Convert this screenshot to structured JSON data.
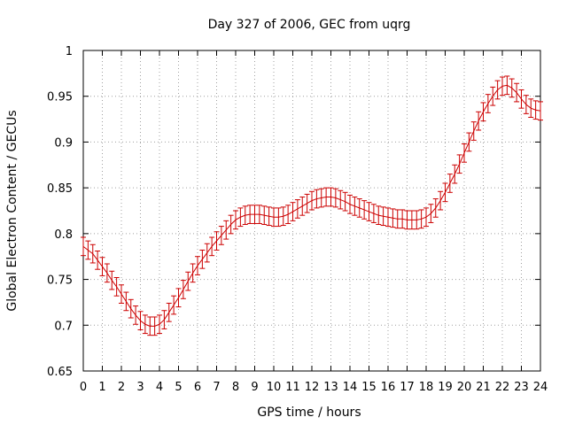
{
  "chart_data": {
    "type": "line",
    "title": "Day 327 of 2006, GEC from uqrg",
    "xlabel": "GPS time / hours",
    "ylabel": "Global Electron Content / GECUs",
    "xlim": [
      0,
      24
    ],
    "ylim": [
      0.65,
      1.0
    ],
    "xticks": [
      "0",
      "1",
      "2",
      "3",
      "4",
      "5",
      "6",
      "7",
      "8",
      "9",
      "10",
      "11",
      "12",
      "13",
      "14",
      "15",
      "16",
      "17",
      "18",
      "19",
      "20",
      "21",
      "22",
      "23",
      "24"
    ],
    "yticks": [
      "0.65",
      "0.7",
      "0.75",
      "0.8",
      "0.85",
      "0.9",
      "0.95",
      "1"
    ],
    "ytick_values": [
      0.65,
      0.7,
      0.75,
      0.8,
      0.85,
      0.9,
      0.95,
      1.0
    ],
    "grid": true,
    "color": "#cc0000",
    "error": 0.01,
    "series": [
      {
        "name": "GEC",
        "x": [
          0,
          0.25,
          0.5,
          0.75,
          1,
          1.25,
          1.5,
          1.75,
          2,
          2.25,
          2.5,
          2.75,
          3,
          3.25,
          3.5,
          3.75,
          4,
          4.25,
          4.5,
          4.75,
          5,
          5.25,
          5.5,
          5.75,
          6,
          6.25,
          6.5,
          6.75,
          7,
          7.25,
          7.5,
          7.75,
          8,
          8.25,
          8.5,
          8.75,
          9,
          9.25,
          9.5,
          9.75,
          10,
          10.25,
          10.5,
          10.75,
          11,
          11.25,
          11.5,
          11.75,
          12,
          12.25,
          12.5,
          12.75,
          13,
          13.25,
          13.5,
          13.75,
          14,
          14.25,
          14.5,
          14.75,
          15,
          15.25,
          15.5,
          15.75,
          16,
          16.25,
          16.5,
          16.75,
          17,
          17.25,
          17.5,
          17.75,
          18,
          18.25,
          18.5,
          18.75,
          19,
          19.25,
          19.5,
          19.75,
          20,
          20.25,
          20.5,
          20.75,
          21,
          21.25,
          21.5,
          21.75,
          22,
          22.25,
          22.5,
          22.75,
          23,
          23.25,
          23.5,
          23.75,
          24
        ],
        "values": [
          0.786,
          0.782,
          0.778,
          0.771,
          0.764,
          0.757,
          0.749,
          0.742,
          0.734,
          0.726,
          0.718,
          0.711,
          0.705,
          0.701,
          0.699,
          0.699,
          0.701,
          0.706,
          0.714,
          0.722,
          0.73,
          0.739,
          0.748,
          0.757,
          0.765,
          0.772,
          0.779,
          0.786,
          0.792,
          0.798,
          0.804,
          0.81,
          0.815,
          0.818,
          0.82,
          0.821,
          0.821,
          0.821,
          0.82,
          0.819,
          0.818,
          0.818,
          0.819,
          0.821,
          0.824,
          0.827,
          0.83,
          0.833,
          0.836,
          0.838,
          0.839,
          0.84,
          0.84,
          0.839,
          0.837,
          0.835,
          0.832,
          0.83,
          0.828,
          0.826,
          0.824,
          0.822,
          0.82,
          0.819,
          0.818,
          0.817,
          0.816,
          0.816,
          0.815,
          0.815,
          0.815,
          0.816,
          0.818,
          0.822,
          0.828,
          0.836,
          0.845,
          0.855,
          0.865,
          0.876,
          0.888,
          0.9,
          0.912,
          0.923,
          0.933,
          0.942,
          0.95,
          0.957,
          0.961,
          0.962,
          0.959,
          0.954,
          0.947,
          0.941,
          0.937,
          0.935,
          0.934
        ]
      }
    ]
  }
}
